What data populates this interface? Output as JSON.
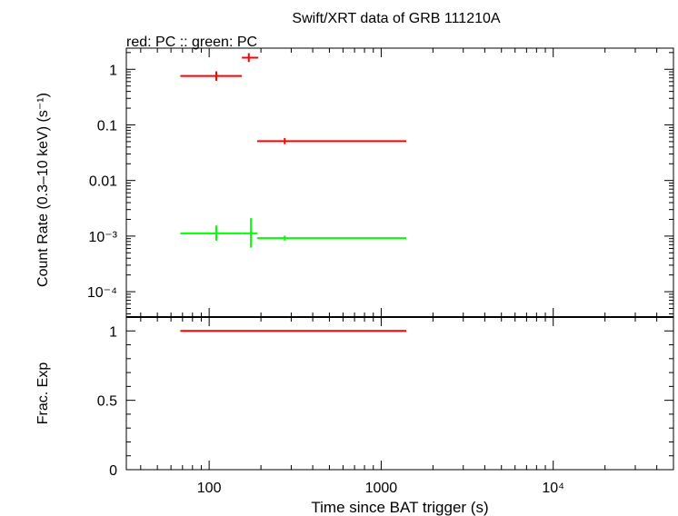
{
  "title": "Swift/XRT data of GRB 111210A",
  "subtitle": "red: PC  :: green: PC",
  "colors": {
    "red": "#ff0000",
    "green": "#00ff00",
    "axis": "#000000"
  },
  "chart_data": [
    {
      "type": "scatter",
      "panel": "count-rate",
      "ylabel": "Count Rate (0.3–10 keV) (s⁻¹)",
      "xscale": "log",
      "yscale": "log",
      "xlim": [
        33,
        50000
      ],
      "ylim": [
        3.5e-05,
        2.4
      ],
      "y_ticks": [
        {
          "value": 1,
          "label": "1"
        },
        {
          "value": 0.1,
          "label": "0.1"
        },
        {
          "value": 0.01,
          "label": "0.01"
        },
        {
          "value": 0.001,
          "label": "10⁻³"
        },
        {
          "value": 0.0001,
          "label": "10⁻⁴"
        }
      ],
      "series": [
        {
          "color": "red",
          "points": [
            {
              "x": 110,
              "xerr": [
                68,
                155
              ],
              "y": 0.76,
              "yerr": [
                0.62,
                0.92
              ]
            },
            {
              "x": 170,
              "xerr": [
                155,
                193
              ],
              "y": 1.62,
              "yerr": [
                1.35,
                1.95
              ]
            },
            {
              "x": 275,
              "xerr": [
                190,
                1400
              ],
              "y": 0.051,
              "yerr": [
                0.045,
                0.058
              ]
            }
          ]
        },
        {
          "color": "green",
          "points": [
            {
              "x": 110,
              "xerr": [
                68,
                155
              ],
              "y": 0.00112,
              "yerr": [
                0.00083,
                0.00155
              ]
            },
            {
              "x": 175,
              "xerr": [
                155,
                190
              ],
              "y": 0.00112,
              "yerr": [
                0.00062,
                0.0021
              ]
            },
            {
              "x": 275,
              "xerr": [
                190,
                1400
              ],
              "y": 0.00092,
              "yerr": [
                0.00083,
                0.00102
              ]
            }
          ]
        }
      ]
    },
    {
      "type": "line",
      "panel": "fractional-exposure",
      "ylabel": "Frac. Exp",
      "xlabel": "Time since BAT trigger (s)",
      "xscale": "log",
      "xlim": [
        33,
        50000
      ],
      "ylim": [
        0,
        1.1
      ],
      "y_ticks": [
        {
          "value": 1,
          "label": "1"
        },
        {
          "value": 0.5,
          "label": "0.5"
        },
        {
          "value": 0,
          "label": "0"
        }
      ],
      "x_ticks": [
        {
          "value": 100,
          "label": "100"
        },
        {
          "value": 1000,
          "label": "1000"
        },
        {
          "value": 10000,
          "label": "10⁴"
        }
      ],
      "series": [
        {
          "color": "red",
          "segments": [
            {
              "x": [
                68,
                1400
              ],
              "y": 1
            }
          ]
        }
      ]
    }
  ]
}
